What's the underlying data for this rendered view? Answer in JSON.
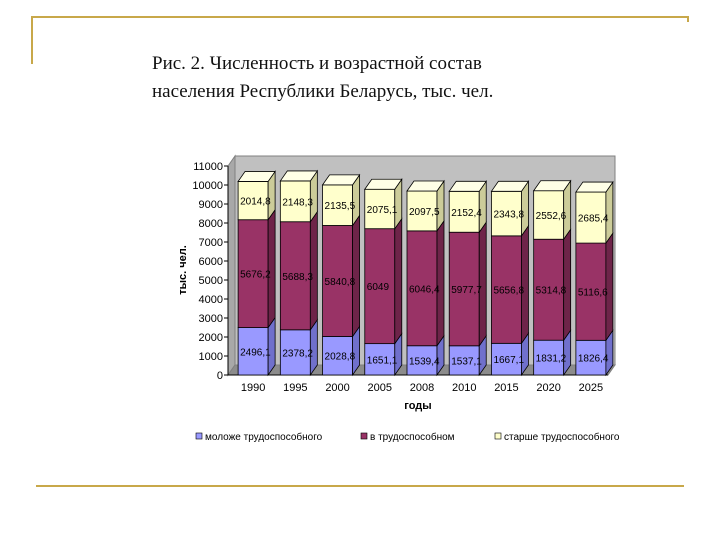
{
  "slide": {
    "title_line1": "Рис. 2. Численность и возрастной состав",
    "title_line2": "населения Республики Беларусь, тыс. чел."
  },
  "chart_data": {
    "type": "bar",
    "stacked": true,
    "categories": [
      "1990",
      "1995",
      "2000",
      "2005",
      "2008",
      "2010",
      "2015",
      "2020",
      "2025"
    ],
    "series": [
      {
        "name": "моложе трудоспособного",
        "color": "#9999ff",
        "values": [
          2496.1,
          2378.2,
          2028.8,
          1651.1,
          1539.4,
          1537.1,
          1667.1,
          1831.2,
          1826.4
        ],
        "labels": [
          "2496,1",
          "2378,2",
          "2028,8",
          "1651,1",
          "1539,4",
          "1537,1",
          "1667,1",
          "1831,2",
          "1826,4"
        ]
      },
      {
        "name": "в трудоспособном",
        "color": "#993366",
        "values": [
          5676.2,
          5688.3,
          5840.8,
          6049,
          6046.4,
          5977.7,
          5656.8,
          5314.8,
          5116.6
        ],
        "labels": [
          "5676,2",
          "5688,3",
          "5840,8",
          "6049",
          "6046,4",
          "5977,7",
          "5656,8",
          "5314,8",
          "5116,6"
        ]
      },
      {
        "name": "старше трудоспособного",
        "color": "#ffffcc",
        "values": [
          2014.8,
          2148.3,
          2135.5,
          2075.1,
          2097.5,
          2152.4,
          2343.8,
          2552.6,
          2685.4
        ],
        "labels": [
          "2014,8",
          "2148,3",
          "2135,5",
          "2075,1",
          "2097,5",
          "2152,4",
          "2343,8",
          "2552,6",
          "2685,4"
        ]
      }
    ],
    "yticks": [
      "0",
      "1000",
      "2000",
      "3000",
      "4000",
      "5000",
      "6000",
      "7000",
      "8000",
      "9000",
      "10000",
      "11000"
    ],
    "ylim": [
      0,
      11000
    ],
    "ylabel": "тыс. чел.",
    "xlabel": "годы",
    "legend_position": "bottom",
    "grid": false,
    "wall_color": "#c0c0c0"
  }
}
